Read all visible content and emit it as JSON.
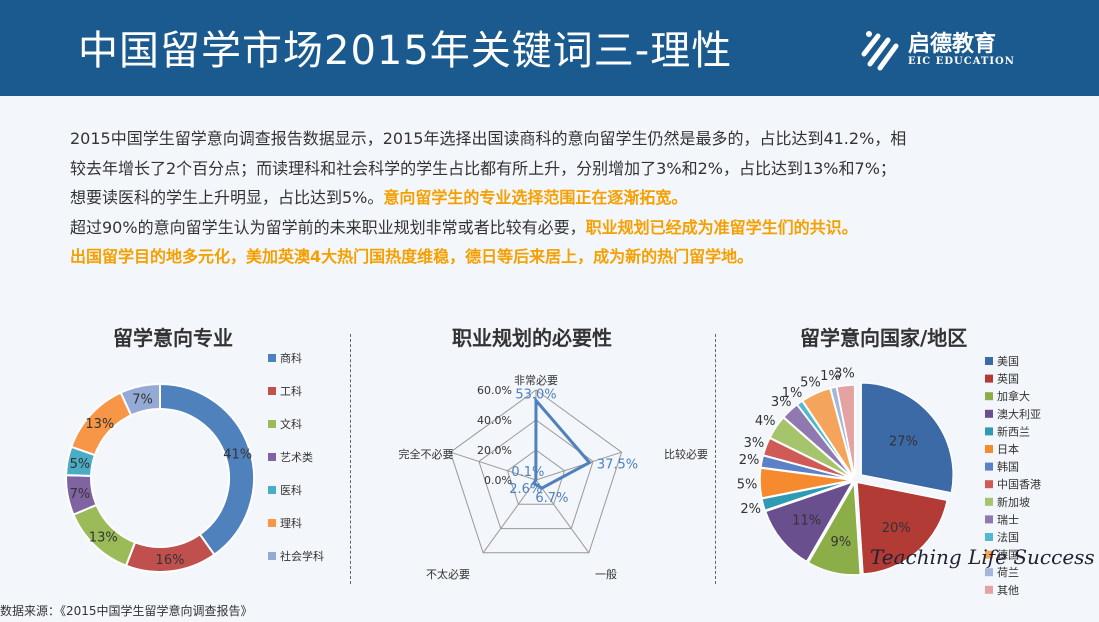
{
  "header": {
    "title": "中国留学市场2015年关键词三-理性",
    "logo_brand": "启德教育",
    "logo_sub": "EIC EDUCATION"
  },
  "intro": {
    "line1": "2015中国学生留学意向调查报告数据显示，2015年选择出国读商科的意向留学生仍然是最多的，占比达到41.2%，相",
    "line2": "较去年增长了2个百分点；而读理科和社会科学的学生占比都有所上升，分别增加了3%和2%，占比达到13%和7%；",
    "line3_normal": "想要读医科的学生上升明显，占比达到5%。",
    "line3_highlight": "意向留学生的专业选择范围正在逐渐拓宽。",
    "line4_normal": "超过90%的意向留学生认为留学前的未来职业规划非常或者比较有必要，",
    "line4_highlight": "职业规划已经成为准留学生们的共识。",
    "line5_highlight": "出国留学目的地多元化，美加英澳4大热门国热度维稳，德日等后来居上，成为新的热门留学地。"
  },
  "source": "数据来源：《2015中国学生留学意向调查报告》",
  "watermark": "Teaching Life Success",
  "colors": {
    "header_bg": "#1a5a8f",
    "highlight": "#f5a000"
  },
  "chart_data": [
    {
      "type": "donut",
      "title": "留学意向专业",
      "categories": [
        "商科",
        "工科",
        "文科",
        "艺术类",
        "医科",
        "理科",
        "社会学科"
      ],
      "values": [
        41,
        16,
        13,
        7,
        5,
        13,
        7
      ],
      "labels": [
        "41%",
        "16%",
        "13%",
        "7%",
        "5%",
        "13%",
        "7%"
      ],
      "colors": [
        "#4f81bd",
        "#c0504d",
        "#9bbb59",
        "#8064a2",
        "#4bacc6",
        "#f79646",
        "#95a9d6"
      ],
      "legend": "right"
    },
    {
      "type": "radar",
      "title": "职业规划的必要性",
      "categories": [
        "非常必要",
        "比较必要",
        "一般",
        "不太必要",
        "完全不必要"
      ],
      "values": [
        53.0,
        37.5,
        6.7,
        2.6,
        0.1
      ],
      "labels": [
        "53.0%",
        "37.5%",
        "6.7%",
        "2.6%",
        "0.1%"
      ],
      "ticks": [
        "0.0%",
        "20.0%",
        "40.0%",
        "60.0%"
      ],
      "rmax": 60,
      "color": "#4f81bd"
    },
    {
      "type": "pie",
      "title": "留学意向国家/地区",
      "categories": [
        "美国",
        "英国",
        "加拿大",
        "澳大利亚",
        "新西兰",
        "日本",
        "韩国",
        "中国香港",
        "新加坡",
        "瑞士",
        "法国",
        "德国",
        "荷兰",
        "其他"
      ],
      "values": [
        27,
        20,
        9,
        11,
        2,
        5,
        2,
        3,
        4,
        3,
        1,
        5,
        1,
        3
      ],
      "labels": [
        "27%",
        "20%",
        "9%",
        "11%",
        "2%",
        "5%",
        "2%",
        "3%",
        "4%",
        "3%",
        "1%",
        "5%",
        "1%",
        "3%"
      ],
      "colors": [
        "#3c6aa6",
        "#b23b36",
        "#8cae48",
        "#6a4f8e",
        "#2f9ab3",
        "#f58a2e",
        "#5b82c6",
        "#d05a56",
        "#a5c46b",
        "#8f79b0",
        "#52b8d0",
        "#f5a55b",
        "#a3b6dc",
        "#e4a3a1"
      ],
      "legend": "right"
    }
  ]
}
